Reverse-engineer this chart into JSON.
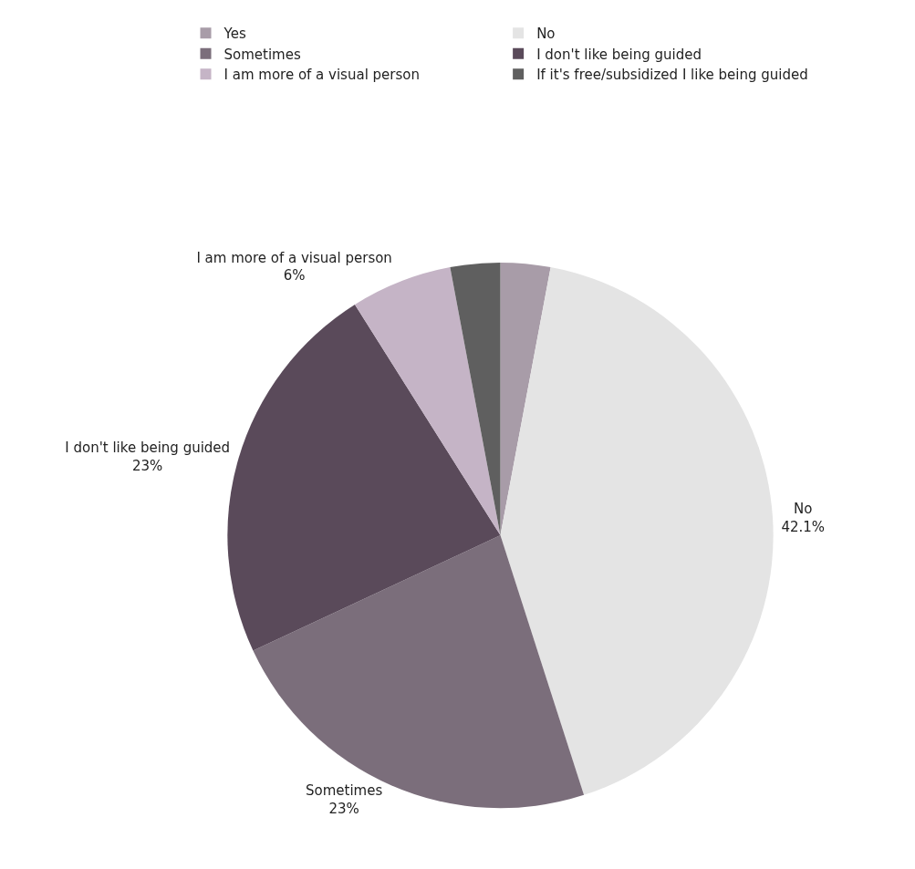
{
  "chart_data": {
    "type": "pie",
    "categories": [
      "Yes",
      "No",
      "Sometimes",
      "I don't like being guided",
      "I am more of a visual person",
      "If it's free/subsidized I like being guided"
    ],
    "values": [
      2.95,
      42.1,
      23,
      23,
      6,
      2.95
    ],
    "value_labels": [
      null,
      "42.1%",
      "23%",
      "23%",
      "6%",
      null
    ],
    "colors": [
      "#a89ca8",
      "#e4e4e4",
      "#7b6e7b",
      "#5a4a5a",
      "#c5b4c6",
      "#5f5f5f"
    ],
    "legend": "top"
  }
}
